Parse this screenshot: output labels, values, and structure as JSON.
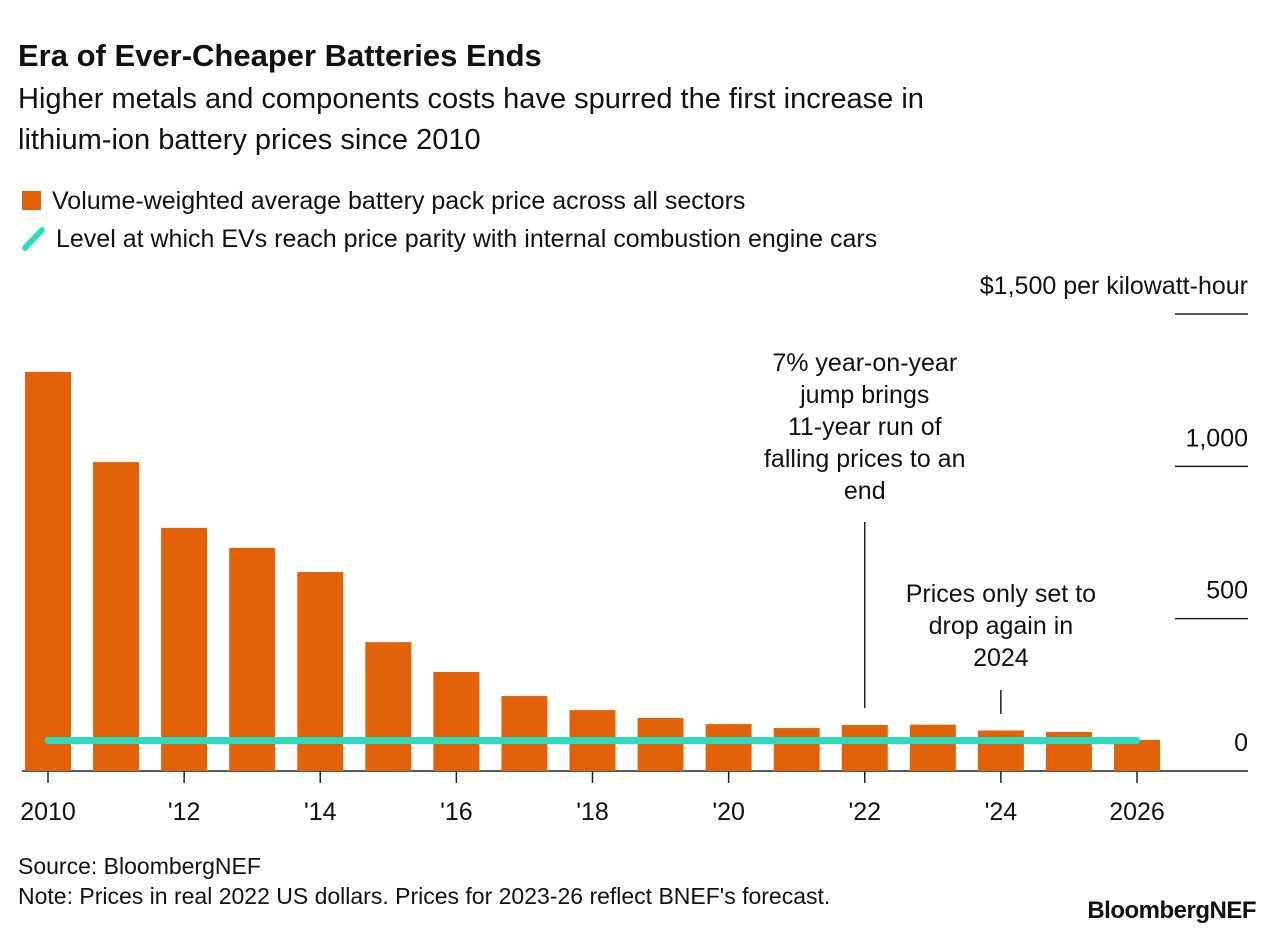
{
  "chart_data": {
    "type": "bar",
    "title": "Era of Ever-Cheaper Batteries Ends",
    "subtitle": [
      "Higher metals and components costs have spurred the first increase in",
      "lithium-ion battery prices since 2010"
    ],
    "categories": [
      "2010",
      null,
      "'12",
      null,
      "'14",
      null,
      "'16",
      null,
      "'18",
      null,
      "'20",
      null,
      "'22",
      null,
      "'24",
      null,
      "2026"
    ],
    "series": [
      {
        "name": "Volume-weighted average battery pack price across all sectors",
        "color": "#e36209",
        "values": [
          1310,
          1014,
          798,
          732,
          653,
          423,
          325,
          246,
          200,
          174,
          154,
          141,
          151,
          152,
          133,
          128,
          102
        ]
      }
    ],
    "reference_line": {
      "name": "Level at which EVs reach price parity with internal combustion engine cars",
      "color": "#2ddbbf",
      "value": 100
    },
    "ylim": [
      0,
      1500
    ],
    "yticks": [
      0,
      500,
      {
        "value": 1000,
        "label": "1,000"
      },
      {
        "value": 1500,
        "label": "$1,500 per kilowatt-hour"
      }
    ],
    "annotations": [
      {
        "text": [
          "7% year-on-year",
          "jump brings",
          "11-year run of",
          "falling prices to an",
          "end"
        ]
      },
      {
        "text": [
          "Prices only set to",
          "drop again in",
          "2024"
        ]
      }
    ],
    "source": "Source: BloombergNEF",
    "note": "Note: Prices in real 2022 US dollars. Prices for 2023-26 reflect BNEF's forecast.",
    "logo": "BloombergNEF"
  }
}
